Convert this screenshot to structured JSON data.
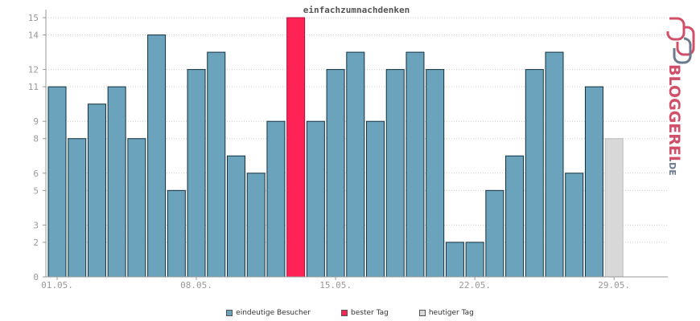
{
  "chart_data": {
    "type": "bar",
    "title": "einfachzumnachdenken",
    "categories": [
      "01.05.",
      "02.05.",
      "03.05.",
      "04.05.",
      "05.05.",
      "06.05.",
      "07.05.",
      "08.05.",
      "09.05.",
      "10.05.",
      "11.05.",
      "12.05.",
      "13.05.",
      "14.05.",
      "15.05.",
      "16.05.",
      "17.05.",
      "18.05.",
      "19.05.",
      "20.05.",
      "21.05.",
      "22.05.",
      "23.05.",
      "24.05.",
      "25.05.",
      "26.05.",
      "27.05.",
      "28.05.",
      "29.05."
    ],
    "values": [
      11,
      8,
      10,
      11,
      8,
      14,
      5,
      12,
      13,
      7,
      6,
      9,
      15,
      9,
      12,
      13,
      9,
      12,
      13,
      12,
      2,
      2,
      5,
      7,
      12,
      13,
      6,
      11,
      8
    ],
    "bar_kinds": [
      "u",
      "u",
      "u",
      "u",
      "u",
      "u",
      "u",
      "u",
      "u",
      "u",
      "u",
      "u",
      "best",
      "u",
      "u",
      "u",
      "u",
      "u",
      "u",
      "u",
      "u",
      "u",
      "u",
      "u",
      "u",
      "u",
      "u",
      "u",
      "today"
    ],
    "xtick_labels": [
      "01.05.",
      "08.05.",
      "15.05.",
      "22.05.",
      "29.05."
    ],
    "xtick_index": [
      0,
      7,
      14,
      21,
      28
    ],
    "ytick_labels": [
      "0",
      "2",
      "3",
      "5",
      "6",
      "8",
      "9",
      "11",
      "12",
      "14",
      "15"
    ],
    "ylim": [
      0,
      15
    ],
    "grid": true,
    "legend_position": "bottom",
    "series": [
      {
        "name": "eindeutige Besucher",
        "color": "#6aa3bb"
      },
      {
        "name": "bester Tag",
        "color": "#ff2255"
      },
      {
        "name": "heutiger Tag",
        "color": "#d8d8d8"
      }
    ]
  },
  "logo": {
    "text": "BLOGGEREI",
    "suffix": ".DE"
  }
}
